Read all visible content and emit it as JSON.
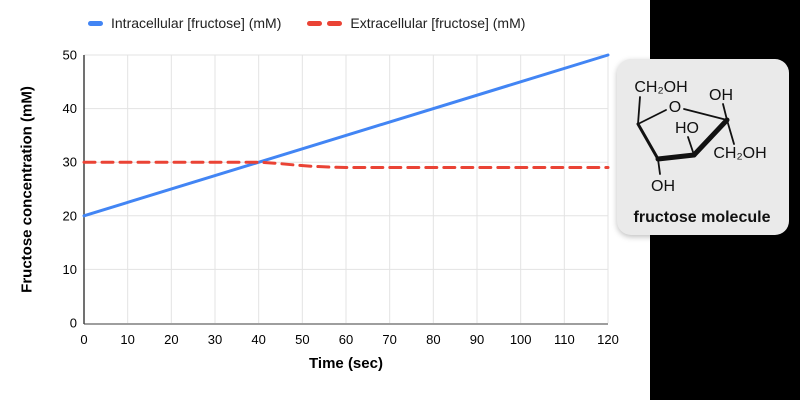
{
  "legend": {
    "items": [
      {
        "label": "Intracellular [fructose] (mM)",
        "color": "#4285F4",
        "style": "solid"
      },
      {
        "label": "Extracellular [fructose] (mM)",
        "color": "#EA4335",
        "style": "dashed"
      }
    ]
  },
  "chart_data": {
    "type": "line",
    "title": "",
    "xlabel": "Time (sec)",
    "ylabel": "Fructose concentration (mM)",
    "xlim": [
      0,
      120
    ],
    "ylim": [
      0,
      50
    ],
    "x_ticks": [
      0,
      10,
      20,
      30,
      40,
      50,
      60,
      70,
      80,
      90,
      100,
      110,
      120
    ],
    "y_ticks": [
      0,
      10,
      20,
      30,
      40,
      50
    ],
    "grid": true,
    "legend_position": "top-left",
    "series": [
      {
        "name": "Intracellular [fructose] (mM)",
        "color": "#4285F4",
        "line_style": "solid",
        "points": [
          [
            0,
            20
          ],
          [
            120,
            50
          ]
        ]
      },
      {
        "name": "Extracellular [fructose] (mM)",
        "color": "#EA4335",
        "line_style": "dashed",
        "points": [
          [
            0,
            30
          ],
          [
            40,
            30
          ],
          [
            44,
            29.8
          ],
          [
            48,
            29.5
          ],
          [
            52,
            29.25
          ],
          [
            56,
            29.1
          ],
          [
            60,
            29
          ],
          [
            120,
            29
          ]
        ]
      }
    ]
  },
  "molecule_card": {
    "caption": "fructose molecule",
    "background": "#EAEAEA",
    "labels": {
      "ch2oh_top": "CH₂OH",
      "oh_top_right": "OH",
      "ring_oxygen": "O",
      "ho_inner": "HO",
      "ch2oh_right": "CH₂OH",
      "oh_bottom": "OH"
    }
  },
  "colors": {
    "series_blue": "#4285F4",
    "series_red": "#EA4335",
    "gridline": "#E3E3E3",
    "y_axis_line": "#424242",
    "x_axis_line": "#9E9E9E",
    "tick_text": "#000000",
    "page_bg": "#FFFFFF",
    "right_band_bg": "#000000"
  }
}
